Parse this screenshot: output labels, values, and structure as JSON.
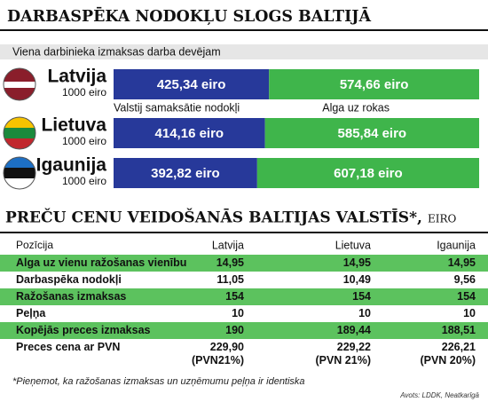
{
  "chart_data": {
    "type": "bar",
    "orientation": "horizontal",
    "stacked": true,
    "title": "DARBASPĒKA NODOKĻU SLOGS BALTIJĀ",
    "subtitle": "Viena darbinieka izmaksas darba devējam",
    "categories": [
      "Latvija",
      "Lietuva",
      "Igaunija"
    ],
    "category_notes": [
      "1000 eiro",
      "1000 eiro",
      "1000 eiro"
    ],
    "xlim": [
      0,
      1000
    ],
    "series": [
      {
        "name": "Valstij samaksātie nodokļi",
        "color": "#27399a",
        "values": [
          425.34,
          414.16,
          392.82
        ],
        "value_labels": [
          "425,34 eiro",
          "414,16 eiro",
          "392,82 eiro"
        ]
      },
      {
        "name": "Alga uz rokas",
        "color": "#3fb54b",
        "values": [
          574.66,
          585.84,
          607.18
        ],
        "value_labels": [
          "574,66 eiro",
          "585,84 eiro",
          "607,18 eiro"
        ]
      }
    ]
  },
  "table": {
    "title": "PREČU CENU VEIDOŠANĀS BALTIJAS VALSTĪS*,",
    "title_unit": "EIRO",
    "header": [
      "Pozīcija",
      "Latvija",
      "Lietuva",
      "Igaunija"
    ],
    "rows": [
      [
        "Alga uz vienu ražošanas vienību",
        "14,95",
        "14,95",
        "14,95"
      ],
      [
        "Darbaspēka nodokļi",
        "11,05",
        "10,49",
        "9,56"
      ],
      [
        "Ražošanas izmaksas",
        "154",
        "154",
        "154"
      ],
      [
        "Peļņa",
        "10",
        "10",
        "10"
      ],
      [
        "Kopējās preces izmaksas",
        "190",
        "189,44",
        "188,51"
      ],
      [
        "Preces cena ar PVN",
        [
          "229,90",
          "(PVN21%)"
        ],
        [
          "229,22",
          "(PVN 21%)"
        ],
        [
          "226,21",
          "(PVN 20%)"
        ]
      ]
    ],
    "footnote": "*Pieņemot, ka ražošanas izmaksas un uzņēmumu peļņa ir identiska",
    "source": "Avots: LDDK, Neatkarīgā"
  }
}
